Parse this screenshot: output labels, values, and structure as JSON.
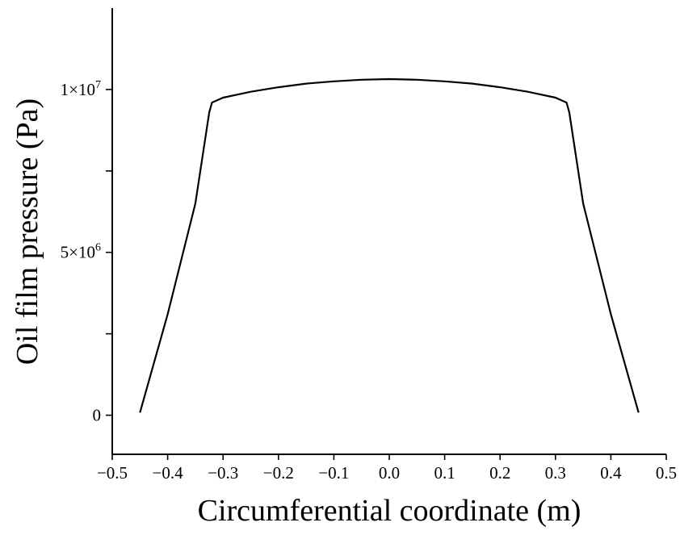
{
  "chart_data": {
    "type": "line",
    "xlabel": "Circumferential coordinate (m)",
    "ylabel": "Oil film pressure (Pa)",
    "xlim": [
      -0.5,
      0.5
    ],
    "ylim": [
      -1200000,
      12500000
    ],
    "x_ticks": [
      {
        "value": -0.5,
        "label": "−0.5"
      },
      {
        "value": -0.4,
        "label": "−0.4"
      },
      {
        "value": -0.3,
        "label": "−0.3"
      },
      {
        "value": -0.2,
        "label": "−0.2"
      },
      {
        "value": -0.1,
        "label": "−0.1"
      },
      {
        "value": 0.0,
        "label": "0.0"
      },
      {
        "value": 0.1,
        "label": "0.1"
      },
      {
        "value": 0.2,
        "label": "0.2"
      },
      {
        "value": 0.3,
        "label": "0.3"
      },
      {
        "value": 0.4,
        "label": "0.4"
      },
      {
        "value": 0.5,
        "label": "0.5"
      }
    ],
    "y_ticks_labeled": [
      {
        "value": 0,
        "label": "0"
      },
      {
        "value": 5000000,
        "label": "5×10",
        "exponent": "6"
      },
      {
        "value": 10000000,
        "label": "1×10",
        "exponent": "7"
      }
    ],
    "y_ticks_minor": [
      2500000,
      7500000
    ],
    "series": [
      {
        "x": [
          -0.45,
          -0.4,
          -0.35,
          -0.325,
          -0.32,
          -0.3,
          -0.25,
          -0.2,
          -0.15,
          -0.1,
          -0.05,
          0.0,
          0.05,
          0.1,
          0.15,
          0.2,
          0.25,
          0.3,
          0.32,
          0.325,
          0.35,
          0.4,
          0.45
        ],
        "y": [
          80000,
          3100000,
          6500000,
          9300000,
          9600000,
          9750000,
          9930000,
          10070000,
          10180000,
          10250000,
          10300000,
          10320000,
          10300000,
          10250000,
          10180000,
          10070000,
          9930000,
          9750000,
          9600000,
          9300000,
          6500000,
          3100000,
          80000
        ]
      }
    ]
  }
}
